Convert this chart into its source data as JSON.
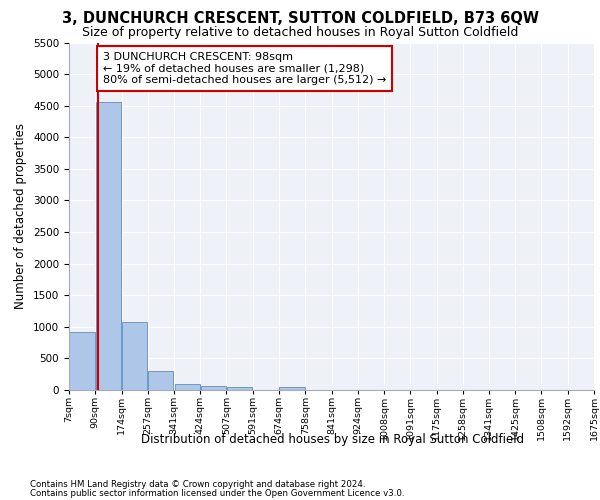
{
  "title": "3, DUNCHURCH CRESCENT, SUTTON COLDFIELD, B73 6QW",
  "subtitle": "Size of property relative to detached houses in Royal Sutton Coldfield",
  "xlabel": "Distribution of detached houses by size in Royal Sutton Coldfield",
  "ylabel": "Number of detached properties",
  "footnote1": "Contains HM Land Registry data © Crown copyright and database right 2024.",
  "footnote2": "Contains public sector information licensed under the Open Government Licence v3.0.",
  "annotation_title": "3 DUNCHURCH CRESCENT: 98sqm",
  "annotation_line1": "← 19% of detached houses are smaller (1,298)",
  "annotation_line2": "80% of semi-detached houses are larger (5,512) →",
  "bin_labels": [
    "7sqm",
    "90sqm",
    "174sqm",
    "257sqm",
    "341sqm",
    "424sqm",
    "507sqm",
    "591sqm",
    "674sqm",
    "758sqm",
    "841sqm",
    "924sqm",
    "1008sqm",
    "1091sqm",
    "1175sqm",
    "1258sqm",
    "1341sqm",
    "1425sqm",
    "1508sqm",
    "1592sqm",
    "1675sqm"
  ],
  "bin_edges": [
    7,
    90,
    174,
    257,
    341,
    424,
    507,
    591,
    674,
    758,
    841,
    924,
    1008,
    1091,
    1175,
    1258,
    1341,
    1425,
    1508,
    1592,
    1675
  ],
  "bar_heights": [
    920,
    4560,
    1080,
    305,
    90,
    65,
    55,
    0,
    55,
    0,
    0,
    0,
    0,
    0,
    0,
    0,
    0,
    0,
    0,
    0
  ],
  "bar_color": "#aec6e8",
  "bar_edge_color": "#5a8fc0",
  "vline_x": 98,
  "vline_color": "#cc0000",
  "ylim": [
    0,
    5500
  ],
  "yticks": [
    0,
    500,
    1000,
    1500,
    2000,
    2500,
    3000,
    3500,
    4000,
    4500,
    5000,
    5500
  ],
  "background_color": "#eef2f8",
  "title_fontsize": 10.5,
  "subtitle_fontsize": 9
}
